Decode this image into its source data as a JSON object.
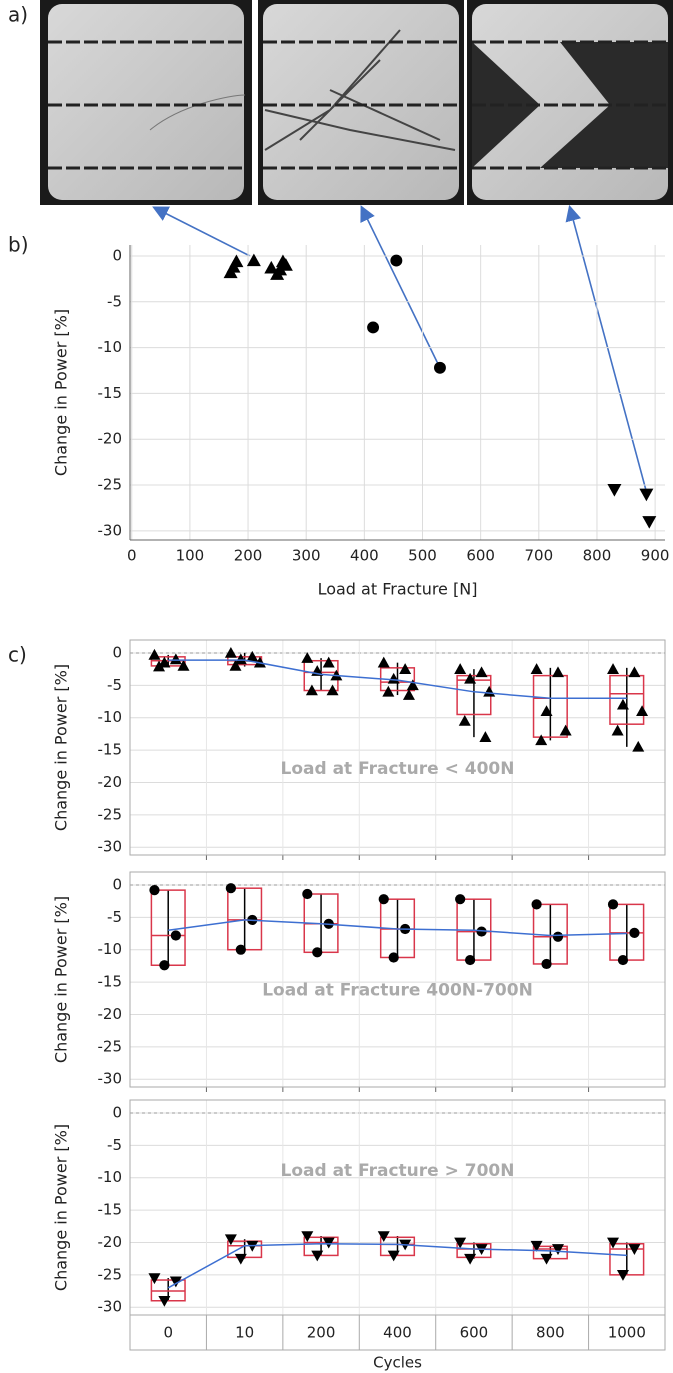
{
  "panel_labels": [
    "a)",
    "b)",
    "c)"
  ],
  "chart_data": [
    {
      "type": "scatter",
      "xlabel": "Load at Fracture [N]",
      "ylabel": "Change in Power [%]",
      "xlim": [
        -3,
        917
      ],
      "ylim": [
        -31,
        1.2
      ],
      "xticks": [
        0,
        100,
        200,
        300,
        400,
        500,
        600,
        700,
        800,
        900
      ],
      "yticks": [
        0,
        -5,
        -10,
        -15,
        -20,
        -25,
        -30
      ],
      "grid": true,
      "series": [
        {
          "marker": "triangle-up",
          "color": "#000000",
          "x": [
            170,
            175,
            180,
            210,
            240,
            250,
            255,
            260,
            265
          ],
          "values": [
            -1.8,
            -1.2,
            -0.6,
            -0.5,
            -1.3,
            -2,
            -1.5,
            -0.6,
            -1.0
          ]
        },
        {
          "marker": "circle",
          "color": "#000000",
          "x": [
            415,
            455,
            530
          ],
          "values": [
            -7.8,
            -0.5,
            -12.2
          ]
        },
        {
          "marker": "triangle-down",
          "color": "#000000",
          "x": [
            830,
            885,
            890
          ],
          "values": [
            -25.5,
            -26,
            -29
          ]
        }
      ]
    },
    {
      "type": "box",
      "ylabel": "Change in Power [%]",
      "annotation": "Load at Fracture < 400N",
      "ylim": [
        -31.2,
        2
      ],
      "yticks": [
        0,
        -5,
        -10,
        -15,
        -20,
        -25,
        -30
      ],
      "grid": true,
      "zero_line": true,
      "marker": "triangle-up",
      "marker_color": "#000000",
      "box_color": "#d9364a",
      "mean_color": "#3d6fd1",
      "boxes": [
        [
          -2.1,
          -2.0,
          -1.2,
          -0.6,
          -0.3
        ],
        [
          -2.1,
          -1.8,
          -1.2,
          -0.6,
          0
        ],
        [
          -5.8,
          -5.8,
          -3,
          -1.2,
          -0.8
        ],
        [
          -6.5,
          -5.8,
          -4.5,
          -2.3,
          -1.5
        ],
        [
          -13,
          -9.5,
          -4.2,
          -3.5,
          -2.5
        ],
        [
          -13.5,
          -13,
          -7,
          -3.5,
          -2.3
        ],
        [
          -14.5,
          -11,
          -6.3,
          -3.5,
          -2.3
        ]
      ],
      "means": [
        -1.1,
        -1.1,
        -3.3,
        -4.2,
        -6,
        -7,
        -7
      ],
      "points": [
        [
          -0.3,
          -1,
          -1.5,
          -2,
          -2.1
        ],
        [
          0,
          -0.6,
          -1,
          -1.5,
          -2
        ],
        [
          -0.8,
          -1.5,
          -2.8,
          -3.5,
          -5.8,
          -5.8
        ],
        [
          -1.5,
          -2.5,
          -4,
          -5,
          -6,
          -6.5
        ],
        [
          -2.5,
          -3,
          -4,
          -6,
          -10.5,
          -13
        ],
        [
          -2.5,
          -3,
          -9,
          -12,
          -13.5
        ],
        [
          -2.5,
          -3,
          -8,
          -9,
          -12,
          -14.5
        ]
      ]
    },
    {
      "type": "box",
      "ylabel": "Change in Power [%]",
      "annotation": "Load at Fracture 400N-700N",
      "ylim": [
        -31.2,
        2
      ],
      "yticks": [
        0,
        -5,
        -10,
        -15,
        -20,
        -25,
        -30
      ],
      "grid": true,
      "zero_line": true,
      "marker": "circle",
      "marker_color": "#000000",
      "box_color": "#d9364a",
      "mean_color": "#3d6fd1",
      "boxes": [
        [
          -12.4,
          -12.4,
          -7.8,
          -0.8,
          -0.8
        ],
        [
          -10,
          -10,
          -5.4,
          -0.5,
          -0.5
        ],
        [
          -10.4,
          -10.4,
          -6,
          -1.4,
          -1.4
        ],
        [
          -11.2,
          -11.2,
          -6.8,
          -2.2,
          -2.2
        ],
        [
          -11.6,
          -11.6,
          -7.2,
          -2.2,
          -2.2
        ],
        [
          -12.2,
          -12.2,
          -8,
          -3,
          -3
        ],
        [
          -11.6,
          -11.6,
          -7.4,
          -3,
          -3
        ]
      ],
      "means": [
        -7,
        -5.4,
        -6,
        -6.8,
        -7,
        -7.8,
        -7.5
      ],
      "points": [
        [
          -0.8,
          -7.8,
          -12.4
        ],
        [
          -0.5,
          -5.4,
          -10
        ],
        [
          -1.4,
          -6,
          -10.4
        ],
        [
          -2.2,
          -6.8,
          -11.2
        ],
        [
          -2.2,
          -7.2,
          -11.6
        ],
        [
          -3,
          -8,
          -12.2
        ],
        [
          -3,
          -7.4,
          -11.6
        ]
      ]
    },
    {
      "type": "box",
      "ylabel": "Change in Power [%]",
      "annotation": "Load at Fracture > 700N",
      "xlabel": "Cycles",
      "categories": [
        "0",
        "10",
        "200",
        "400",
        "600",
        "800",
        "1000"
      ],
      "ylim": [
        -31.2,
        2
      ],
      "yticks": [
        0,
        -5,
        -10,
        -15,
        -20,
        -25,
        -30
      ],
      "grid": true,
      "zero_line": true,
      "marker": "triangle-down",
      "marker_color": "#000000",
      "box_color": "#d9364a",
      "mean_color": "#3d6fd1",
      "boxes": [
        [
          -29,
          -29,
          -27.5,
          -25.8,
          -25.5
        ],
        [
          -22.5,
          -22.3,
          -20.5,
          -19.8,
          -19.5
        ],
        [
          -22,
          -22,
          -20,
          -19.2,
          -19
        ],
        [
          -22,
          -22,
          -20.3,
          -19.2,
          -19
        ],
        [
          -22.5,
          -22.3,
          -21,
          -20.2,
          -20
        ],
        [
          -22.5,
          -22.5,
          -21,
          -20.6,
          -20.5
        ],
        [
          -25,
          -25,
          -21,
          -20.2,
          -20
        ]
      ],
      "means": [
        -27,
        -20.5,
        -20.2,
        -20.3,
        -21,
        -21.3,
        -22
      ],
      "points": [
        [
          -25.5,
          -26,
          -29
        ],
        [
          -19.5,
          -20.5,
          -22.5
        ],
        [
          -19,
          -20,
          -22
        ],
        [
          -19,
          -20.3,
          -22
        ],
        [
          -20,
          -21,
          -22.5
        ],
        [
          -20.5,
          -21,
          -22.5
        ],
        [
          -20,
          -21,
          -25
        ]
      ]
    }
  ]
}
